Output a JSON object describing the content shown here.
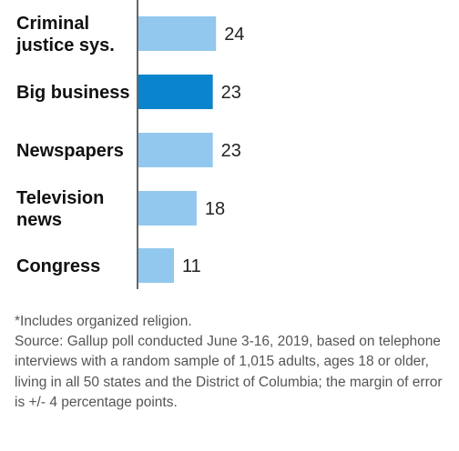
{
  "chart_data": {
    "type": "bar",
    "orientation": "horizontal",
    "categories": [
      [
        "Criminal",
        "justice sys."
      ],
      [
        "Big business"
      ],
      [
        "Newspapers"
      ],
      [
        "Television",
        "news"
      ],
      [
        "Congress"
      ]
    ],
    "values": [
      24,
      23,
      23,
      18,
      11
    ],
    "highlight_index": 1,
    "colors": {
      "bar": "#92c8ee",
      "highlight": "#0a84cc",
      "axis": "#333333"
    },
    "xlim": [
      0,
      100
    ]
  },
  "notes": {
    "footnote": "*Includes organized religion.",
    "source": "Source: Gallup poll conducted June 3-16, 2019, based on telephone interviews with a random sample of 1,015 adults, ages 18 or older, living in all 50 states and the District of Columbia; the margin of error is +/- 4 percentage points."
  }
}
